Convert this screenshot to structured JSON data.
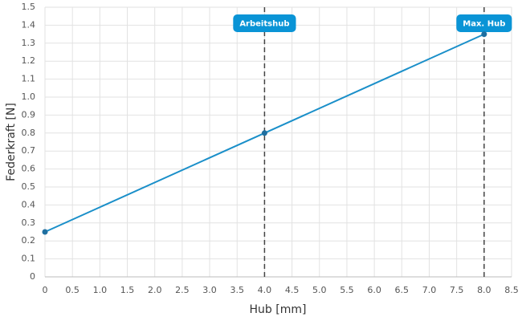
{
  "chart_data": {
    "type": "line",
    "xlabel": "Hub [mm]",
    "ylabel": "Federkraft [N]",
    "x": [
      0,
      4,
      8
    ],
    "series": [
      {
        "name": "Federkraft",
        "color": "#1a8fc9",
        "values": [
          0.25,
          0.8,
          1.35
        ]
      }
    ],
    "xlim": [
      0,
      8.5
    ],
    "ylim": [
      0,
      1.5
    ],
    "xticks": [
      0,
      0.5,
      {
        "value": 1,
        "label": "1.0"
      },
      1.5,
      {
        "value": 2,
        "label": "2.0"
      },
      2.5,
      {
        "value": 3,
        "label": "3.0"
      },
      3.5,
      {
        "value": 4,
        "label": "4.0"
      },
      4.5,
      {
        "value": 5,
        "label": "5.0"
      },
      5.5,
      {
        "value": 6,
        "label": "6.0"
      },
      6.5,
      {
        "value": 7,
        "label": "7.0"
      },
      7.5,
      {
        "value": 8,
        "label": "8.0"
      },
      8.5
    ],
    "yticks": [
      0,
      0.1,
      0.2,
      0.3,
      0.4,
      0.5,
      0.6,
      0.7,
      0.8,
      0.9,
      {
        "value": 1,
        "label": "1.0"
      },
      1.1,
      1.2,
      1.3,
      1.4,
      1.5
    ],
    "grid": true,
    "annotations": [
      {
        "x": 4,
        "label": "Arbeitshub"
      },
      {
        "x": 8,
        "label": "Max. Hub"
      }
    ],
    "annotation_color": "#0a94d6"
  }
}
